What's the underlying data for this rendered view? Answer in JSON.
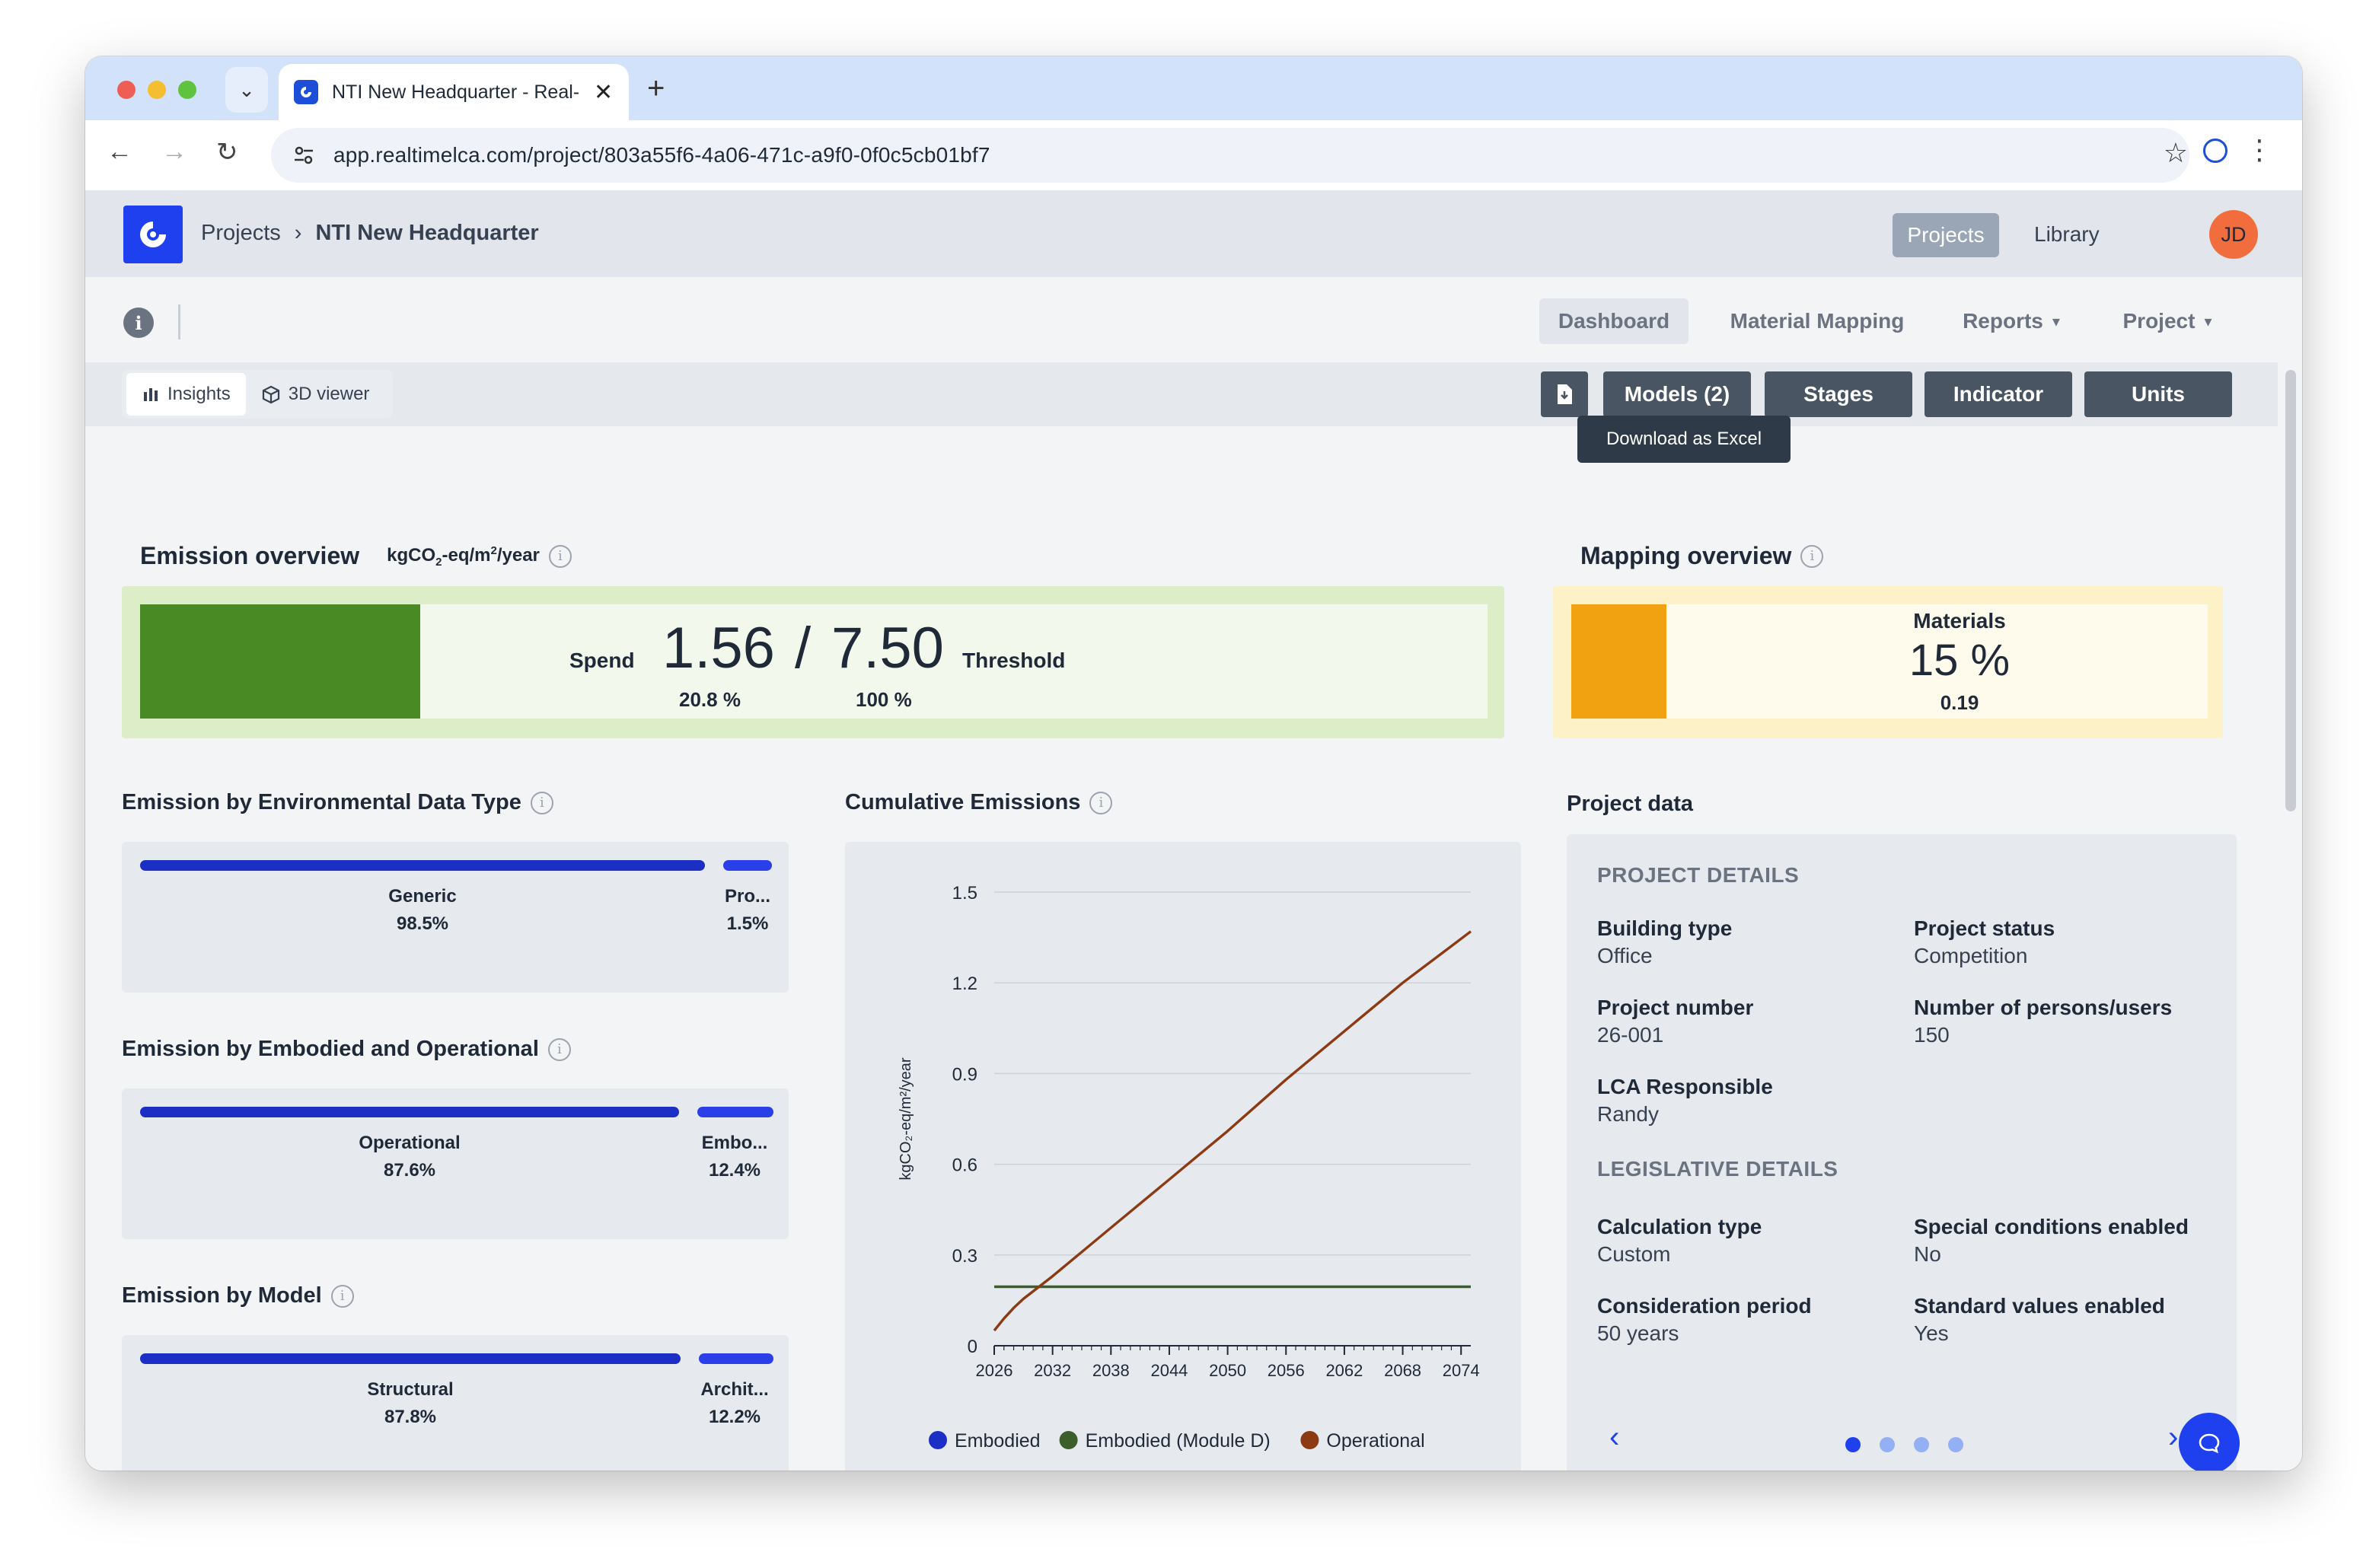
{
  "browser": {
    "tab_title": "NTI New Headquarter - Real-",
    "url": "app.realtimelca.com/project/803a55f6-4a06-471c-a9f0-0f0c5cb01bf7"
  },
  "header": {
    "breadcrumb_root": "Projects",
    "breadcrumb_current": "NTI New Headquarter",
    "nav_projects": "Projects",
    "nav_library": "Library",
    "avatar_initials": "JD"
  },
  "subnav": {
    "dashboard": "Dashboard",
    "material_mapping": "Material Mapping",
    "reports": "Reports",
    "project": "Project"
  },
  "controls": {
    "insights": "Insights",
    "viewer": "3D viewer",
    "models": "Models (2)",
    "stages": "Stages",
    "indicator": "Indicator",
    "units": "Units",
    "tooltip": "Download as Excel"
  },
  "emission_overview": {
    "title": "Emission overview",
    "unit_prefix": "kgCO",
    "unit_sub": "2",
    "unit_mid": "-eq/m",
    "unit_sup": "2",
    "unit_suffix": "/year",
    "spend_label": "Spend",
    "spend_value": "1.56",
    "separator": "/",
    "threshold_value": "7.50",
    "threshold_label": "Threshold",
    "spend_pct": "20.8 %",
    "threshold_pct": "100 %",
    "fill_fraction": 0.208,
    "fill_color": "#4a8a24"
  },
  "mapping_overview": {
    "title": "Mapping overview",
    "label": "Materials",
    "value": "15 %",
    "sub": "0.19",
    "fill_fraction": 0.15,
    "fill_color": "#f0a211"
  },
  "env_data_type": {
    "title": "Emission by Environmental Data Type",
    "items": [
      {
        "label": "Generic",
        "pct": "98.5%",
        "color": "#1c2fc4"
      },
      {
        "label": "Pro...",
        "pct": "1.5%",
        "color": "#2a3fe8"
      }
    ]
  },
  "embodied_operational": {
    "title": "Emission by Embodied and Operational",
    "items": [
      {
        "label": "Operational",
        "pct": "87.6%",
        "color": "#1c2fc4"
      },
      {
        "label": "Embo...",
        "pct": "12.4%",
        "color": "#2a3fe8"
      }
    ]
  },
  "by_model": {
    "title": "Emission by Model",
    "items": [
      {
        "label": "Structural",
        "pct": "87.8%",
        "color": "#1c2fc4"
      },
      {
        "label": "Archit...",
        "pct": "12.2%",
        "color": "#2a3fe8"
      }
    ]
  },
  "cumulative": {
    "title": "Cumulative Emissions"
  },
  "chart_data": {
    "type": "line",
    "title": "Cumulative Emissions",
    "ylabel": "kgCO₂-eq/m²/year",
    "xlabel": "",
    "x_ticks": [
      "2026",
      "2032",
      "2038",
      "2044",
      "2050",
      "2056",
      "2062",
      "2068",
      "2074"
    ],
    "y_ticks": [
      "0",
      "0.3",
      "0.6",
      "0.9",
      "1.2",
      "1.5"
    ],
    "xlim": [
      2026,
      2075
    ],
    "ylim": [
      0,
      1.5
    ],
    "grid": true,
    "legend_position": "bottom",
    "series": [
      {
        "name": "Embodied",
        "color": "#1c2fc4",
        "x": [],
        "y": []
      },
      {
        "name": "Embodied (Module D)",
        "color": "#3b5e2b",
        "x": [
          2026,
          2075
        ],
        "y": [
          0.195,
          0.195
        ]
      },
      {
        "name": "Operational",
        "color": "#8b3a12",
        "x": [
          2026,
          2027,
          2028,
          2029,
          2030,
          2032,
          2038,
          2044,
          2050,
          2056,
          2062,
          2068,
          2075
        ],
        "y": [
          0.05,
          0.09,
          0.125,
          0.155,
          0.18,
          0.23,
          0.39,
          0.55,
          0.71,
          0.88,
          1.04,
          1.2,
          1.37
        ]
      }
    ]
  },
  "project_data": {
    "title": "Project data",
    "details_heading": "PROJECT DETAILS",
    "building_type_label": "Building type",
    "building_type": "Office",
    "project_status_label": "Project status",
    "project_status": "Competition",
    "project_number_label": "Project number",
    "project_number": "26-001",
    "persons_label": "Number of persons/users",
    "persons": "150",
    "lca_label": "LCA Responsible",
    "lca": "Randy",
    "legislative_heading": "LEGISLATIVE DETAILS",
    "calc_type_label": "Calculation type",
    "calc_type": "Custom",
    "special_label": "Special conditions enabled",
    "special": "No",
    "period_label": "Consideration period",
    "period": "50 years",
    "standard_label": "Standard values enabled",
    "standard": "Yes",
    "pages": 4,
    "active_page": 1
  }
}
